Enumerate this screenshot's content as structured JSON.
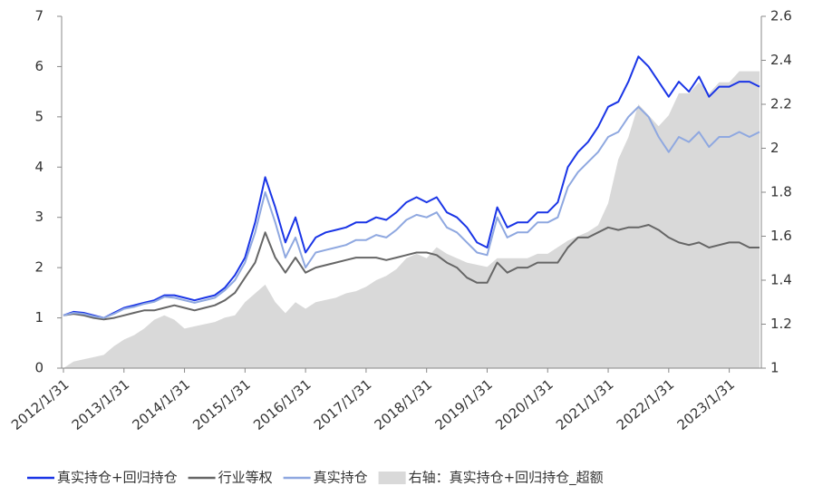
{
  "chart_data": {
    "type": "line",
    "categories": [
      "2012/1/31",
      null,
      null,
      null,
      null,
      null,
      "2013/1/31",
      null,
      null,
      null,
      null,
      null,
      "2014/1/31",
      null,
      null,
      null,
      null,
      null,
      "2015/1/31",
      null,
      null,
      null,
      null,
      null,
      "2016/1/31",
      null,
      null,
      null,
      null,
      null,
      "2017/1/31",
      null,
      null,
      null,
      null,
      null,
      "2018/1/31",
      null,
      null,
      null,
      null,
      null,
      "2019/1/31",
      null,
      null,
      null,
      null,
      null,
      "2020/1/31",
      null,
      null,
      null,
      null,
      null,
      "2021/1/31",
      null,
      null,
      null,
      null,
      null,
      "2022/1/31",
      null,
      null,
      null,
      null,
      null,
      "2023/1/31",
      null,
      null,
      null
    ],
    "ylim": [
      0,
      7
    ],
    "yticks": [
      0,
      1,
      2,
      3,
      4,
      5,
      6,
      7
    ],
    "y2lim": [
      1,
      2.6
    ],
    "y2ticks": [
      1,
      {
        "value": 1.2,
        "label": "1.2"
      },
      {
        "value": 1.4,
        "label": "1.4"
      },
      {
        "value": 1.6,
        "label": "1.6"
      },
      {
        "value": 1.8,
        "label": "1.8"
      },
      2,
      {
        "value": 2.2,
        "label": "2.2"
      },
      {
        "value": 2.4,
        "label": "2.4"
      },
      {
        "value": 2.6,
        "label": "2.6"
      }
    ],
    "legend": "bottom",
    "series": [
      {
        "name": "右轴：真实持仓+回归持仓_超额",
        "type": "area",
        "axis": "y2",
        "color": "#d9d9d9",
        "values": [
          1.0,
          1.03,
          1.04,
          1.05,
          1.06,
          1.1,
          1.13,
          1.15,
          1.18,
          1.22,
          1.24,
          1.22,
          1.18,
          1.19,
          1.2,
          1.21,
          1.23,
          1.24,
          1.3,
          1.34,
          1.38,
          1.3,
          1.25,
          1.3,
          1.27,
          1.3,
          1.31,
          1.32,
          1.34,
          1.35,
          1.37,
          1.4,
          1.42,
          1.45,
          1.5,
          1.52,
          1.5,
          1.55,
          1.52,
          1.5,
          1.48,
          1.47,
          1.46,
          1.5,
          1.5,
          1.5,
          1.5,
          1.52,
          1.52,
          1.55,
          1.58,
          1.6,
          1.62,
          1.65,
          1.75,
          1.95,
          2.05,
          2.2,
          2.15,
          2.1,
          2.15,
          2.25,
          2.25,
          2.3,
          2.25,
          2.3,
          2.3,
          2.35,
          2.35,
          2.35
        ]
      },
      {
        "name": "真实持仓+回归持仓",
        "color": "#1a35e6",
        "values": [
          1.05,
          1.12,
          1.1,
          1.05,
          1.0,
          1.1,
          1.2,
          1.25,
          1.3,
          1.35,
          1.45,
          1.45,
          1.4,
          1.35,
          1.4,
          1.45,
          1.6,
          1.85,
          2.2,
          2.9,
          3.8,
          3.2,
          2.5,
          3.0,
          2.3,
          2.6,
          2.7,
          2.75,
          2.8,
          2.9,
          2.9,
          3.0,
          2.95,
          3.1,
          3.3,
          3.4,
          3.3,
          3.4,
          3.1,
          3.0,
          2.8,
          2.5,
          2.4,
          3.2,
          2.8,
          2.9,
          2.9,
          3.1,
          3.1,
          3.3,
          4.0,
          4.3,
          4.5,
          4.8,
          5.2,
          5.3,
          5.7,
          6.2,
          6.0,
          5.7,
          5.4,
          5.7,
          5.5,
          5.8,
          5.4,
          5.6,
          5.6,
          5.7,
          5.7,
          5.6
        ]
      },
      {
        "name": "行业等权",
        "color": "#666666",
        "values": [
          1.05,
          1.08,
          1.05,
          1.0,
          0.97,
          1.0,
          1.05,
          1.1,
          1.15,
          1.15,
          1.2,
          1.25,
          1.2,
          1.15,
          1.2,
          1.25,
          1.35,
          1.5,
          1.8,
          2.1,
          2.7,
          2.2,
          1.9,
          2.2,
          1.9,
          2.0,
          2.05,
          2.1,
          2.15,
          2.2,
          2.2,
          2.2,
          2.15,
          2.2,
          2.25,
          2.3,
          2.3,
          2.25,
          2.1,
          2.0,
          1.8,
          1.7,
          1.7,
          2.1,
          1.9,
          2.0,
          2.0,
          2.1,
          2.1,
          2.1,
          2.4,
          2.6,
          2.6,
          2.7,
          2.8,
          2.75,
          2.8,
          2.8,
          2.85,
          2.75,
          2.6,
          2.5,
          2.45,
          2.5,
          2.4,
          2.45,
          2.5,
          2.5,
          2.4,
          2.4
        ]
      },
      {
        "name": "真实持仓",
        "color": "#8fa8e0",
        "values": [
          1.05,
          1.1,
          1.08,
          1.03,
          1.0,
          1.08,
          1.18,
          1.22,
          1.28,
          1.32,
          1.42,
          1.4,
          1.35,
          1.3,
          1.35,
          1.4,
          1.55,
          1.75,
          2.1,
          2.7,
          3.5,
          2.9,
          2.2,
          2.6,
          2.0,
          2.3,
          2.35,
          2.4,
          2.45,
          2.55,
          2.55,
          2.65,
          2.6,
          2.75,
          2.95,
          3.05,
          3.0,
          3.1,
          2.8,
          2.7,
          2.5,
          2.3,
          2.25,
          3.0,
          2.6,
          2.7,
          2.7,
          2.9,
          2.9,
          3.0,
          3.6,
          3.9,
          4.1,
          4.3,
          4.6,
          4.7,
          5.0,
          5.2,
          5.0,
          4.6,
          4.3,
          4.6,
          4.5,
          4.7,
          4.4,
          4.6,
          4.6,
          4.7,
          4.6,
          4.7
        ]
      }
    ]
  }
}
